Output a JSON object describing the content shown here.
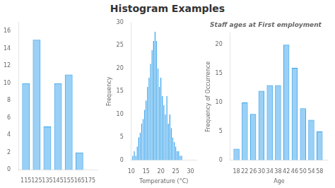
{
  "title": "Histogram Examples",
  "chart_data": [
    {
      "type": "bar",
      "x": [
        115,
        125,
        135,
        145,
        155,
        165,
        175
      ],
      "values": [
        10,
        15,
        5,
        10,
        11,
        2,
        0
      ],
      "xlim": [
        108,
        182
      ],
      "xticks": [
        115,
        125,
        135,
        145,
        155,
        165,
        175
      ],
      "ylim": [
        0,
        17
      ],
      "yticks": [
        0,
        2,
        4,
        6,
        8,
        10,
        12,
        14,
        16
      ],
      "grid": false
    },
    {
      "type": "bar",
      "xlabel": "Temperature (°C)",
      "ylabel": "Frequency",
      "x": [
        10.5,
        11.0,
        11.5,
        12.0,
        12.5,
        13.0,
        13.5,
        14.0,
        14.5,
        15.0,
        15.5,
        16.0,
        16.5,
        17.0,
        17.5,
        18.0,
        18.5,
        19.0,
        19.5,
        20.0,
        20.5,
        21.0,
        21.5,
        22.0,
        22.5,
        23.0,
        23.5,
        24.0,
        24.5,
        25.0,
        25.5,
        26.0,
        26.5,
        27.0
      ],
      "values": [
        1,
        2,
        1,
        3,
        5,
        6,
        8,
        9,
        11,
        13,
        16,
        18,
        21,
        24,
        26,
        28,
        26,
        20,
        16,
        18,
        14,
        12,
        10,
        14,
        8,
        10,
        7,
        5,
        4,
        3,
        2,
        2,
        1,
        1
      ],
      "xlim": [
        10,
        32
      ],
      "xticks": [
        10,
        15,
        20,
        25,
        30
      ],
      "ylim": [
        0,
        30
      ],
      "yticks": [
        0,
        5,
        10,
        15,
        20,
        25,
        30
      ],
      "grid": false
    },
    {
      "type": "bar",
      "title": "Staff ages at First employment",
      "xlabel": "Age",
      "ylabel": "Frequency of Occurrence",
      "x": [
        18,
        22,
        26,
        30,
        34,
        38,
        42,
        46,
        50,
        54,
        58
      ],
      "values": [
        2,
        10,
        8,
        12,
        13,
        13,
        20,
        16,
        9,
        7,
        5
      ],
      "xlim": [
        15,
        62
      ],
      "xticks": [
        18,
        22,
        26,
        30,
        34,
        38,
        42,
        46,
        50,
        54,
        58
      ],
      "ylim": [
        0,
        22
      ],
      "yticks": [
        0,
        5,
        10,
        15,
        20
      ],
      "grid": false
    }
  ]
}
